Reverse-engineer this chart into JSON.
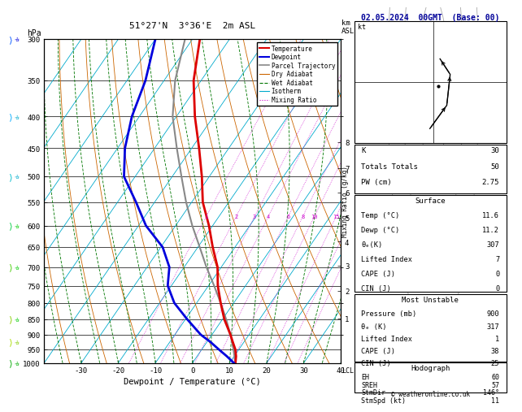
{
  "title_left": "51°27'N  3°36'E  2m ASL",
  "title_right": "02.05.2024  00GMT  (Base: 00)",
  "xlabel": "Dewpoint / Temperature (°C)",
  "pressure_levels": [
    300,
    350,
    400,
    450,
    500,
    550,
    600,
    650,
    700,
    750,
    800,
    850,
    900,
    950,
    1000
  ],
  "temp_ticks": [
    -30,
    -20,
    -10,
    0,
    10,
    20,
    30,
    40
  ],
  "km_labels": [
    1,
    2,
    3,
    4,
    5,
    6,
    7,
    8
  ],
  "km_pressures": [
    848,
    765,
    697,
    637,
    582,
    531,
    484,
    440
  ],
  "temp_profile_p": [
    1000,
    975,
    950,
    925,
    900,
    850,
    800,
    750,
    700,
    650,
    600,
    550,
    500,
    450,
    400,
    350,
    300
  ],
  "temp_profile_t": [
    11.6,
    10.5,
    9.0,
    7.0,
    5.0,
    0.5,
    -3.5,
    -7.5,
    -11.0,
    -16.0,
    -21.0,
    -27.0,
    -32.0,
    -38.0,
    -45.0,
    -52.0,
    -58.0
  ],
  "dewp_profile_p": [
    1000,
    975,
    950,
    925,
    900,
    850,
    800,
    750,
    700,
    650,
    600,
    550,
    500,
    450,
    400,
    350,
    300
  ],
  "dewp_profile_t": [
    11.2,
    8.0,
    4.5,
    1.0,
    -3.0,
    -9.5,
    -16.0,
    -21.0,
    -24.0,
    -29.5,
    -38.0,
    -45.0,
    -53.0,
    -58.0,
    -62.0,
    -65.0,
    -70.0
  ],
  "parcel_profile_p": [
    1000,
    950,
    900,
    850,
    800,
    750,
    700,
    650,
    600,
    550,
    500,
    450,
    400,
    350,
    300
  ],
  "parcel_profile_t": [
    11.6,
    8.5,
    5.0,
    1.0,
    -3.5,
    -8.5,
    -14.0,
    -19.5,
    -25.5,
    -31.5,
    -37.5,
    -44.0,
    -51.0,
    -57.0,
    -62.0
  ],
  "bg_color": "#ffffff",
  "temp_color": "#dd0000",
  "dewp_color": "#0000dd",
  "parcel_color": "#888888",
  "dry_adiabat_color": "#cc6600",
  "wet_adiabat_color": "#007700",
  "isotherm_color": "#00aacc",
  "mixing_ratio_color": "#cc00cc",
  "stats": {
    "K": 30,
    "Totals_Totals": 50,
    "PW_cm": 2.75,
    "Surf_Temp": 11.6,
    "Surf_Dewp": 11.2,
    "Surf_thetae": 307,
    "Surf_LI": 7,
    "Surf_CAPE": 0,
    "Surf_CIN": 0,
    "MU_Pressure": 900,
    "MU_thetae": 317,
    "MU_LI": 1,
    "MU_CAPE": 38,
    "MU_CIN": 25,
    "EH": 60,
    "SREH": 57,
    "StmDir": 146,
    "StmSpd": 11
  }
}
